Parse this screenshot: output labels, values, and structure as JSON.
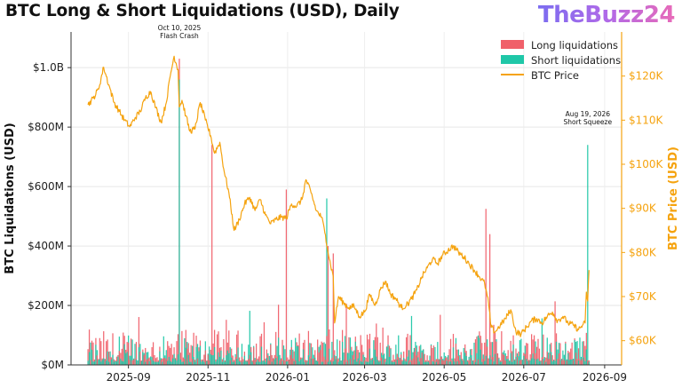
{
  "header": {
    "title": "BTC Long & Short Liquidations (USD), Daily",
    "brand": "TheBuzz24"
  },
  "colors": {
    "long": "#f0606a",
    "short": "#1fc7a8",
    "price": "#f5a30f",
    "axis_left": "#222222",
    "axis_right": "#f5a30f"
  },
  "chart_data": {
    "type": "bar",
    "x_range": [
      "2025-08-01",
      "2026-08-20"
    ],
    "xlim": [
      "2025-07-19",
      "2026-09-14"
    ],
    "x_ticks": [
      "2025-09",
      "2025-11",
      "2026-01",
      "2026-03",
      "2026-05",
      "2026-07",
      "2026-09"
    ],
    "ylabel": "BTC Liquidations (USD)",
    "ylim": [
      0,
      1120000000
    ],
    "y_ticks": [
      {
        "label": "$0M",
        "value": 0
      },
      {
        "label": "$200M",
        "value": 200000000
      },
      {
        "label": "$400M",
        "value": 400000000
      },
      {
        "label": "$600M",
        "value": 600000000
      },
      {
        "label": "$800M",
        "value": 800000000
      },
      {
        "label": "$1.0B",
        "value": 1000000000
      }
    ],
    "y2label": "BTC Price (USD)",
    "y2lim": [
      54500,
      130000
    ],
    "y2_ticks": [
      {
        "label": "$60K",
        "value": 60000
      },
      {
        "label": "$70K",
        "value": 70000
      },
      {
        "label": "$80K",
        "value": 80000
      },
      {
        "label": "$90K",
        "value": 90000
      },
      {
        "label": "$100K",
        "value": 100000
      },
      {
        "label": "$110K",
        "value": 110000
      },
      {
        "label": "$120K",
        "value": 120000
      }
    ],
    "legend": {
      "position": "top-right",
      "items": [
        "Long liquidations",
        "Short liquidations",
        "BTC Price"
      ]
    },
    "series": [
      {
        "name": "Long liquidations",
        "kind": "bar",
        "baseline_range": [
          15000000,
          120000000
        ]
      },
      {
        "name": "Short liquidations",
        "kind": "bar",
        "baseline_range": [
          10000000,
          100000000
        ]
      },
      {
        "name": "BTC Price",
        "kind": "line",
        "axis": "right"
      }
    ],
    "notable_bars": [
      {
        "date": "2025-10-10",
        "series": "Long liquidations",
        "value": 1030000000
      },
      {
        "date": "2025-10-10",
        "series": "Short liquidations",
        "value": 960000000
      },
      {
        "date": "2025-11-04",
        "series": "Long liquidations",
        "value": 740000000
      },
      {
        "date": "2025-12-31",
        "series": "Long liquidations",
        "value": 590000000
      },
      {
        "date": "2026-01-31",
        "series": "Short liquidations",
        "value": 560000000
      },
      {
        "date": "2026-02-01",
        "series": "Long liquidations",
        "value": 400000000
      },
      {
        "date": "2026-02-05",
        "series": "Long liquidations",
        "value": 375000000
      },
      {
        "date": "2026-06-02",
        "series": "Long liquidations",
        "value": 525000000
      },
      {
        "date": "2026-06-05",
        "series": "Long liquidations",
        "value": 440000000
      },
      {
        "date": "2026-08-19",
        "series": "Short liquidations",
        "value": 740000000
      }
    ],
    "price_points": [
      [
        "2025-08-01",
        113500
      ],
      [
        "2025-08-05",
        115000
      ],
      [
        "2025-08-09",
        117000
      ],
      [
        "2025-08-13",
        122000
      ],
      [
        "2025-08-17",
        118000
      ],
      [
        "2025-08-21",
        114000
      ],
      [
        "2025-08-25",
        112000
      ],
      [
        "2025-08-29",
        110000
      ],
      [
        "2025-09-02",
        108500
      ],
      [
        "2025-09-06",
        110500
      ],
      [
        "2025-09-10",
        112000
      ],
      [
        "2025-09-14",
        115000
      ],
      [
        "2025-09-18",
        116500
      ],
      [
        "2025-09-22",
        112800
      ],
      [
        "2025-09-26",
        109500
      ],
      [
        "2025-09-30",
        114000
      ],
      [
        "2025-10-03",
        120000
      ],
      [
        "2025-10-06",
        124500
      ],
      [
        "2025-10-09",
        121500
      ],
      [
        "2025-10-10",
        113000
      ],
      [
        "2025-10-12",
        114500
      ],
      [
        "2025-10-15",
        111000
      ],
      [
        "2025-10-18",
        107500
      ],
      [
        "2025-10-22",
        108000
      ],
      [
        "2025-10-26",
        114000
      ],
      [
        "2025-10-30",
        110000
      ],
      [
        "2025-11-03",
        106500
      ],
      [
        "2025-11-06",
        102500
      ],
      [
        "2025-11-10",
        105000
      ],
      [
        "2025-11-13",
        99000
      ],
      [
        "2025-11-17",
        93500
      ],
      [
        "2025-11-21",
        85000
      ],
      [
        "2025-11-25",
        87500
      ],
      [
        "2025-11-29",
        91000
      ],
      [
        "2025-12-03",
        92500
      ],
      [
        "2025-12-07",
        89500
      ],
      [
        "2025-12-11",
        92000
      ],
      [
        "2025-12-15",
        88500
      ],
      [
        "2025-12-19",
        86500
      ],
      [
        "2025-12-23",
        87500
      ],
      [
        "2025-12-27",
        88000
      ],
      [
        "2025-12-31",
        87800
      ],
      [
        "2026-01-04",
        91000
      ],
      [
        "2026-01-08",
        90500
      ],
      [
        "2026-01-12",
        92000
      ],
      [
        "2026-01-15",
        96500
      ],
      [
        "2026-01-19",
        93500
      ],
      [
        "2026-01-23",
        89500
      ],
      [
        "2026-01-27",
        88000
      ],
      [
        "2026-01-30",
        84000
      ],
      [
        "2026-02-02",
        78500
      ],
      [
        "2026-02-05",
        74500
      ],
      [
        "2026-02-06",
        64000
      ],
      [
        "2026-02-09",
        70000
      ],
      [
        "2026-02-13",
        68500
      ],
      [
        "2026-02-17",
        67500
      ],
      [
        "2026-02-21",
        67800
      ],
      [
        "2026-02-25",
        65500
      ],
      [
        "2026-03-01",
        66500
      ],
      [
        "2026-03-05",
        70500
      ],
      [
        "2026-03-09",
        68000
      ],
      [
        "2026-03-13",
        71500
      ],
      [
        "2026-03-17",
        73500
      ],
      [
        "2026-03-21",
        70500
      ],
      [
        "2026-03-25",
        69500
      ],
      [
        "2026-03-29",
        67500
      ],
      [
        "2026-04-02",
        68000
      ],
      [
        "2026-04-06",
        69500
      ],
      [
        "2026-04-10",
        71500
      ],
      [
        "2026-04-14",
        74500
      ],
      [
        "2026-04-18",
        76500
      ],
      [
        "2026-04-22",
        78500
      ],
      [
        "2026-04-26",
        77500
      ],
      [
        "2026-04-30",
        79500
      ],
      [
        "2026-05-04",
        80500
      ],
      [
        "2026-05-08",
        81500
      ],
      [
        "2026-05-12",
        80000
      ],
      [
        "2026-05-16",
        79000
      ],
      [
        "2026-05-20",
        77500
      ],
      [
        "2026-05-24",
        76000
      ],
      [
        "2026-05-28",
        74500
      ],
      [
        "2026-06-01",
        73000
      ],
      [
        "2026-06-04",
        68500
      ],
      [
        "2026-06-06",
        63000
      ],
      [
        "2026-06-09",
        62000
      ],
      [
        "2026-06-13",
        63500
      ],
      [
        "2026-06-17",
        65000
      ],
      [
        "2026-06-21",
        67000
      ],
      [
        "2026-06-25",
        62000
      ],
      [
        "2026-06-29",
        61500
      ],
      [
        "2026-07-03",
        63000
      ],
      [
        "2026-07-07",
        64500
      ],
      [
        "2026-07-11",
        65000
      ],
      [
        "2026-07-15",
        64000
      ],
      [
        "2026-07-19",
        65500
      ],
      [
        "2026-07-23",
        66500
      ],
      [
        "2026-07-27",
        64500
      ],
      [
        "2026-07-31",
        65500
      ],
      [
        "2026-08-04",
        64000
      ],
      [
        "2026-08-08",
        63500
      ],
      [
        "2026-08-12",
        62500
      ],
      [
        "2026-08-15",
        63500
      ],
      [
        "2026-08-17",
        64000
      ],
      [
        "2026-08-18",
        71000
      ],
      [
        "2026-08-19",
        69000
      ],
      [
        "2026-08-20",
        76000
      ]
    ],
    "annotations": [
      {
        "date": "2025-10-10",
        "lines": [
          "Oct 10, 2025",
          "Flash Crash"
        ]
      },
      {
        "date": "2026-08-19",
        "lines": [
          "Aug 19, 2026",
          "Short Squeeze"
        ]
      }
    ],
    "grid": true
  }
}
